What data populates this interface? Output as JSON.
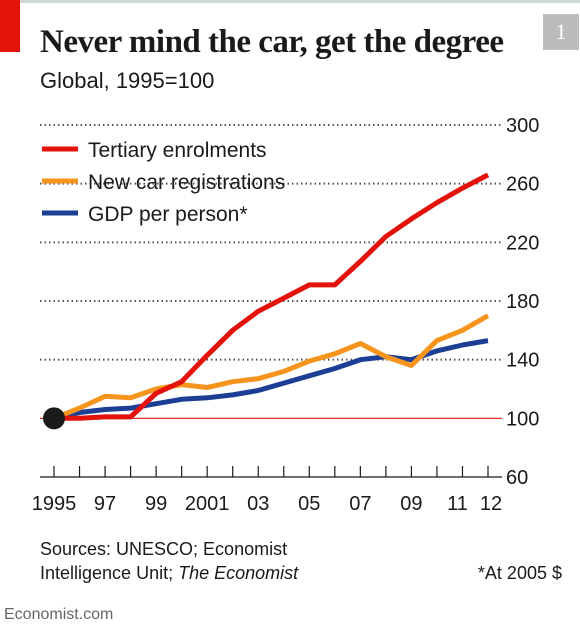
{
  "header": {
    "badge": "1",
    "title": "Never mind the car, get the degree",
    "subtitle": "Global, 1995=100"
  },
  "chart_data": {
    "type": "line",
    "title": "Never mind the car, get the degree",
    "subtitle": "Global, 1995=100",
    "ylim": [
      60,
      300
    ],
    "yticks": [
      60,
      100,
      140,
      180,
      220,
      260,
      300
    ],
    "baseline": 100,
    "x_tick_labels": [
      "1995",
      "97",
      "99",
      "2001",
      "03",
      "05",
      "07",
      "09",
      "11",
      "12"
    ],
    "x": [
      1995,
      1996,
      1997,
      1998,
      1999,
      2000,
      2001,
      2002,
      2003,
      2004,
      2005,
      2006,
      2007,
      2008,
      2009,
      2010,
      2011,
      2012
    ],
    "grid": "horizontal dotted",
    "legend_position": "top-left",
    "series": [
      {
        "name": "Tertiary enrolments",
        "color": "#e3120b",
        "values": [
          100,
          100,
          101,
          101,
          117,
          125,
          143,
          160,
          173,
          182,
          191,
          191,
          207,
          224,
          236,
          247,
          257,
          266
        ]
      },
      {
        "name": "New car registrations",
        "color": "#f7941d",
        "values": [
          100,
          107,
          115,
          114,
          120,
          123,
          121,
          125,
          127,
          132,
          139,
          144,
          151,
          142,
          136,
          153,
          160,
          170
        ]
      },
      {
        "name": "GDP per person*",
        "color": "#1c3f95",
        "values": [
          100,
          104,
          106,
          107,
          110,
          113,
          114,
          116,
          119,
          124,
          129,
          134,
          140,
          142,
          140,
          146,
          150,
          153
        ]
      }
    ]
  },
  "footer": {
    "sources_line1": "Sources: UNESCO; Economist",
    "sources_line2_plain": "Intelligence Unit; ",
    "sources_line2_italic": "The Economist",
    "footnote": "*At 2005 $",
    "brand": "Economist.com"
  }
}
